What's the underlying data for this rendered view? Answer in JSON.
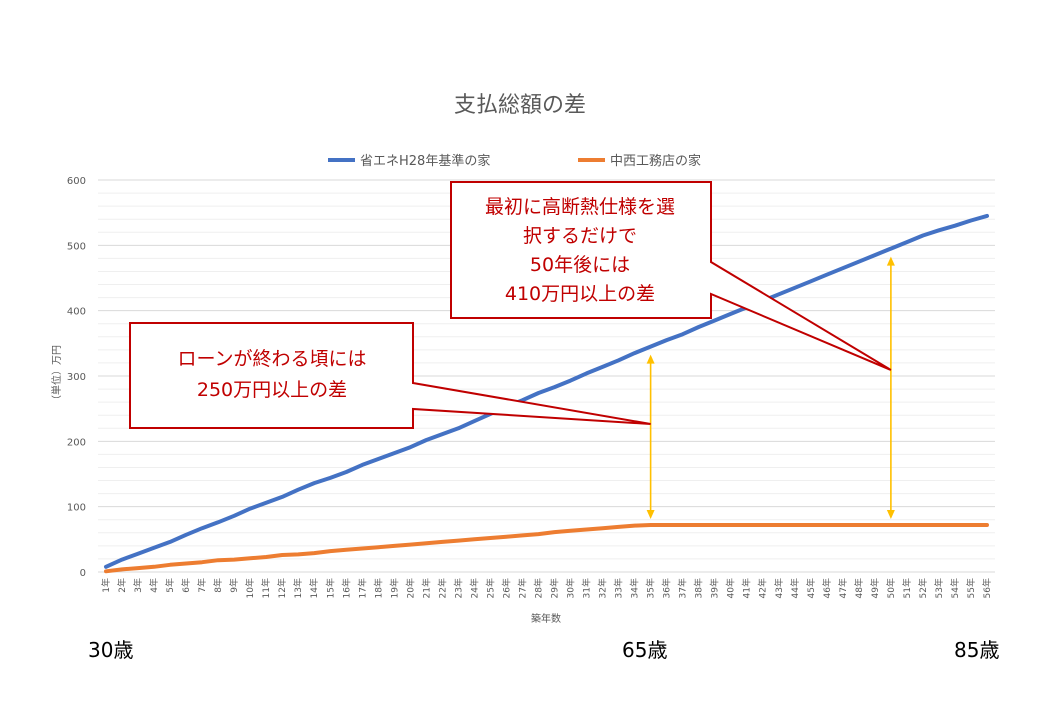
{
  "chart_data": {
    "type": "line",
    "title": "支払総額の差",
    "xlabel": "築年数",
    "ylabel": "（単位）万円",
    "ylim": [
      0,
      600
    ],
    "yticks": [
      0,
      100,
      200,
      300,
      400,
      500,
      600
    ],
    "categories": [
      "1年",
      "2年",
      "3年",
      "4年",
      "5年",
      "6年",
      "7年",
      "8年",
      "9年",
      "10年",
      "11年",
      "12年",
      "13年",
      "14年",
      "15年",
      "16年",
      "17年",
      "18年",
      "19年",
      "20年",
      "21年",
      "22年",
      "23年",
      "24年",
      "25年",
      "26年",
      "27年",
      "28年",
      "29年",
      "30年",
      "31年",
      "32年",
      "33年",
      "34年",
      "35年",
      "36年",
      "37年",
      "38年",
      "39年",
      "40年",
      "41年",
      "42年",
      "43年",
      "44年",
      "45年",
      "46年",
      "47年",
      "48年",
      "49年",
      "50年",
      "51年",
      "52年",
      "53年",
      "54年",
      "55年",
      "56年"
    ],
    "series": [
      {
        "name": "省エネH28年基準の家",
        "color": "#4472c4",
        "values": [
          8,
          19,
          28,
          37,
          46,
          57,
          67,
          76,
          86,
          97,
          106,
          115,
          126,
          136,
          144,
          153,
          164,
          173,
          182,
          191,
          202,
          211,
          220,
          231,
          242,
          253,
          263,
          274,
          283,
          293,
          304,
          314,
          324,
          335,
          345,
          355,
          364,
          375,
          385,
          395,
          405,
          415,
          425,
          435,
          445,
          455,
          465,
          475,
          485,
          495,
          505,
          515,
          523,
          530,
          538,
          545
        ]
      },
      {
        "name": "中西工務店の家",
        "color": "#ed7d31",
        "values": [
          1,
          4,
          6,
          8,
          11,
          13,
          15,
          18,
          19,
          21,
          23,
          26,
          27,
          29,
          32,
          34,
          36,
          38,
          40,
          42,
          44,
          46,
          48,
          50,
          52,
          54,
          56,
          58,
          61,
          63,
          65,
          67,
          69,
          71,
          72,
          72,
          72,
          72,
          72,
          72,
          72,
          72,
          72,
          72,
          72,
          72,
          72,
          72,
          72,
          72,
          72,
          72,
          72,
          72,
          72,
          72
        ]
      }
    ],
    "grid": true,
    "legend": "top",
    "annotations": [
      {
        "id": "callout1",
        "lines": [
          "ローンが終わる頃には",
          "250万円以上の差"
        ],
        "points_to": "35年"
      },
      {
        "id": "callout2",
        "lines": [
          "最初に高断熱仕様を選",
          "択するだけで",
          "50年後には",
          "410万円以上の差"
        ],
        "points_to": "50年"
      }
    ],
    "ages": [
      "30歳",
      "65歳",
      "85歳"
    ]
  },
  "colors": {
    "arrow": "#ffc000",
    "callout_border": "#c00000",
    "callout_text": "#c00000"
  }
}
